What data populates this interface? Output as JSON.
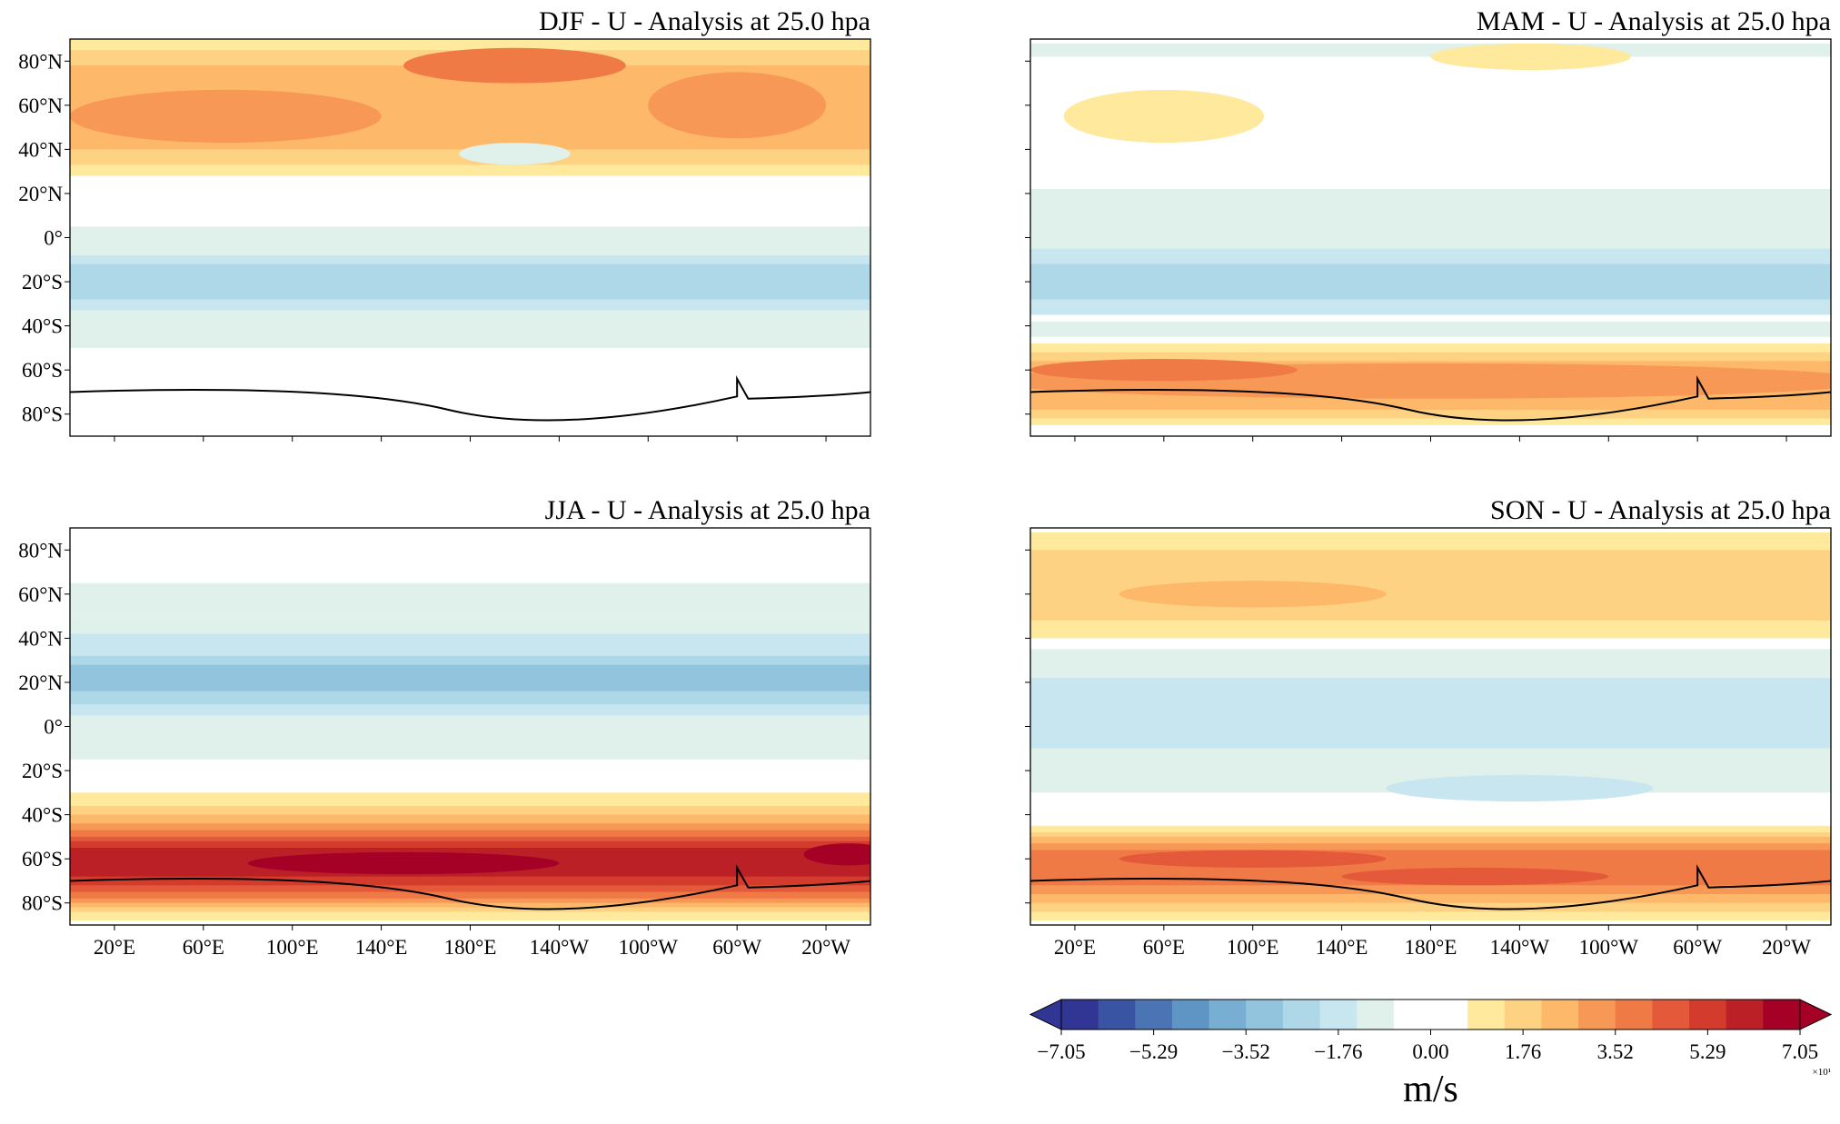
{
  "panels": [
    {
      "title": "DJF - U - Analysis at 25.0 hpa"
    },
    {
      "title": "MAM - U - Analysis at 25.0 hpa"
    },
    {
      "title": "JJA - U - Analysis at 25.0 hpa"
    },
    {
      "title": "SON - U - Analysis at 25.0 hpa"
    }
  ],
  "lat_ticks": [
    "80°N",
    "60°N",
    "40°N",
    "20°N",
    "0°",
    "20°S",
    "40°S",
    "60°S",
    "80°S"
  ],
  "lon_ticks": [
    "20°E",
    "60°E",
    "100°E",
    "140°E",
    "180°E",
    "140°W",
    "100°W",
    "60°W",
    "20°W"
  ],
  "colorbar": {
    "ticks": [
      "−7.05",
      "−5.29",
      "−3.52",
      "−1.76",
      "0.00",
      "1.76",
      "3.52",
      "5.29",
      "7.05"
    ],
    "multiplier": "×10¹",
    "label": "m/s",
    "colors": [
      "#313695",
      "#3a54a4",
      "#4a74b4",
      "#5e95c5",
      "#78aed2",
      "#93c4de",
      "#aed8e8",
      "#c8e6ef",
      "#e0f0ea",
      "#ffffff",
      "#ffffff",
      "#fee99d",
      "#fed283",
      "#fdb86a",
      "#f89856",
      "#f07a46",
      "#e4593a",
      "#d33b2c",
      "#bb2027",
      "#a50026"
    ]
  }
}
